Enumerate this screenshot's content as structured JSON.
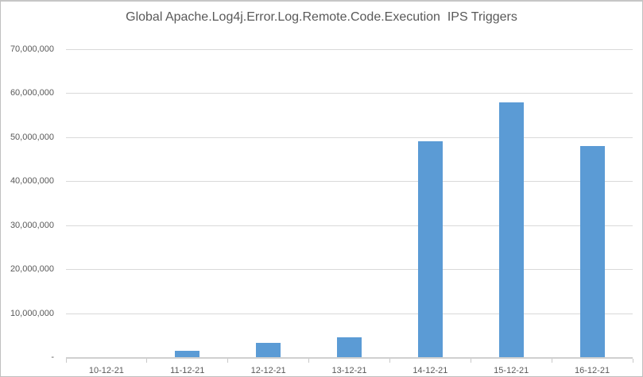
{
  "chart_data": {
    "type": "bar",
    "title": "Global Apache.Log4j.Error.Log.Remote.Code.Execution  IPS Triggers",
    "categories": [
      "10-12-21",
      "11-12-21",
      "12-12-21",
      "13-12-21",
      "14-12-21",
      "15-12-21",
      "16-12-21"
    ],
    "values": [
      0,
      1500000,
      3200000,
      4500000,
      49000000,
      58000000,
      48000000
    ],
    "xlabel": "",
    "ylabel": "",
    "ylim": [
      0,
      70000000
    ],
    "ytick_interval": 10000000,
    "ytick_labels_bottom_up": [
      "-",
      "10,000,000",
      "20,000,000",
      "30,000,000",
      "40,000,000",
      "50,000,000",
      "60,000,000",
      "70,000,000"
    ],
    "grid": true,
    "legend": "none",
    "colors": {
      "bar": "#5B9BD5",
      "gridline": "#D9D9D9",
      "axis": "#C9C9C9",
      "text": "#595959",
      "frame_border": "#C0C0C0",
      "background": "#FFFFFF"
    }
  }
}
